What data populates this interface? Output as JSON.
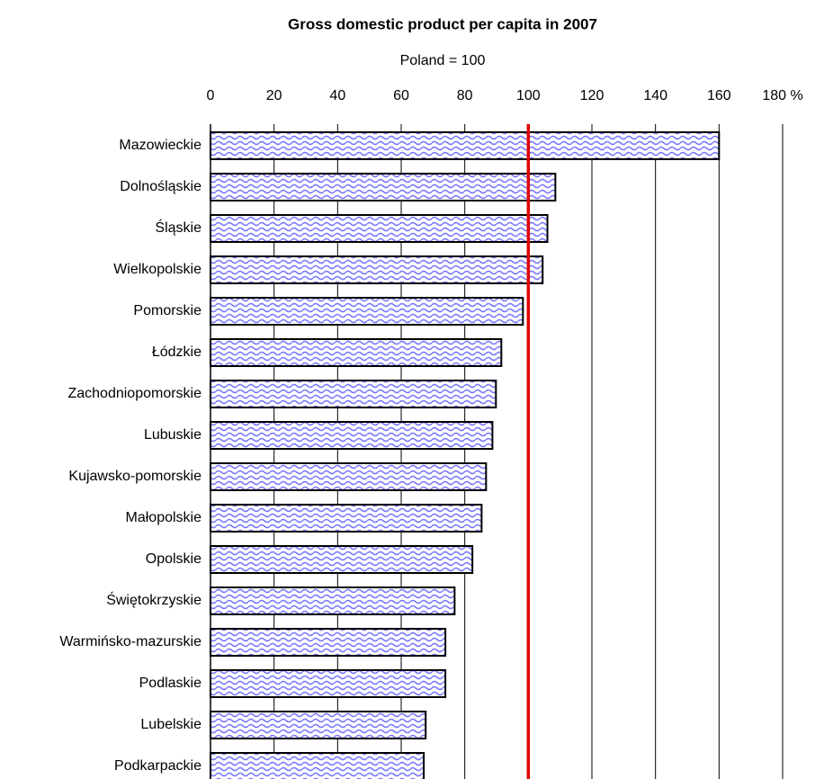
{
  "chart_data": {
    "type": "hbar",
    "title": "Gross domestic product per capita in 2007",
    "subtitle": "Poland = 100",
    "categories": [
      "Mazowieckie",
      "Dolnośląskie",
      "Śląskie",
      "Wielkopolskie",
      "Pomorskie",
      "Łódzkie",
      "Zachodniopomorskie",
      "Lubuskie",
      "Kujawsko-pomorskie",
      "Małopolskie",
      "Opolskie",
      "Świętokrzyskie",
      "Warmińsko-mazurskie",
      "Podlaskie",
      "Lubelskie",
      "Podkarpackie"
    ],
    "values": [
      160,
      108.5,
      106,
      104.5,
      98.3,
      91.5,
      89.8,
      88.7,
      86.7,
      85.3,
      82.4,
      76.8,
      73.9,
      73.9,
      67.7,
      67.1
    ],
    "color": "#7b7bff",
    "xlim": [
      0,
      180
    ],
    "xticks": [
      0,
      20,
      40,
      60,
      80,
      100,
      120,
      140,
      160,
      {
        "value": 180,
        "label": "180 %"
      }
    ],
    "grid": true,
    "reference_value": 100,
    "reference_color": "#e00000"
  }
}
